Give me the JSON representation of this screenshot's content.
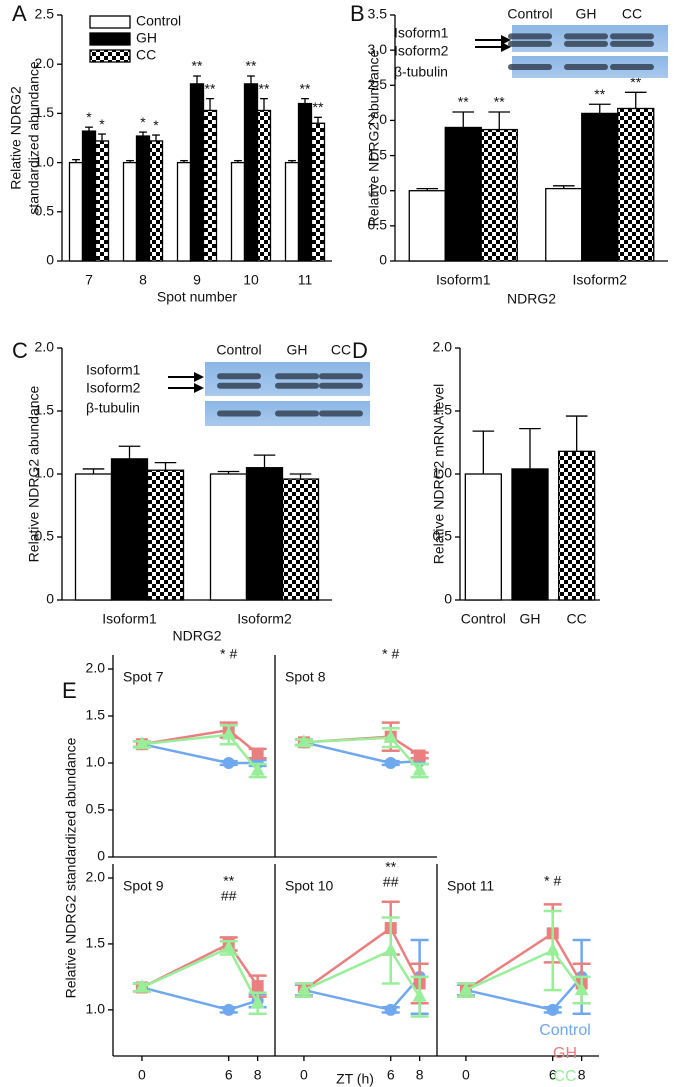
{
  "chart_data": [
    {
      "panel": "A",
      "type": "bar",
      "ylabel": [
        "Relative NDRG2",
        "standardized abundance"
      ],
      "xlabel": "Spot number",
      "categories": [
        "7",
        "8",
        "9",
        "10",
        "11"
      ],
      "ylim": [
        0,
        2.5
      ],
      "yticks": [
        0,
        0.5,
        {
          "value": 1,
          "label": "1.0"
        },
        1.5,
        {
          "value": 2,
          "label": "2.0"
        },
        2.5
      ],
      "legend": "upper left",
      "series": [
        {
          "name": "Control",
          "fill": "#ffffff",
          "values": [
            1,
            1,
            1,
            1,
            1
          ],
          "errors": [
            0.03,
            0.02,
            0.02,
            0.02,
            0.02
          ]
        },
        {
          "name": "GH",
          "fill": "#000000",
          "values": [
            1.32,
            1.27,
            1.8,
            1.8,
            1.6
          ],
          "errors": [
            0.04,
            0.04,
            0.08,
            0.08,
            0.05
          ],
          "markers": [
            "*",
            "*",
            "**",
            "**",
            "**"
          ]
        },
        {
          "name": "CC",
          "fill": "checker",
          "values": [
            1.22,
            1.22,
            1.53,
            1.53,
            1.4
          ],
          "errors": [
            0.07,
            0.06,
            0.12,
            0.12,
            0.06
          ],
          "markers": [
            "*",
            "*",
            "**",
            "**",
            "**"
          ]
        }
      ]
    },
    {
      "panel": "B",
      "type": "bar",
      "ylabel": "Relative NDRG2 abundance",
      "xlabel": "NDRG2",
      "categories": [
        "Isoform1",
        "Isoform2"
      ],
      "ylim": [
        0,
        3.5
      ],
      "yticks": [
        0,
        0.5,
        {
          "value": 1,
          "label": "1.0"
        },
        1.5,
        {
          "value": 2,
          "label": "2.0"
        },
        2.5,
        {
          "value": 3,
          "label": "3.0"
        },
        3.5
      ],
      "inset": {
        "lanes": [
          "Control",
          "GH",
          "CC"
        ],
        "bands": [
          "Isoform1",
          "Isoform2",
          "β-tubulin"
        ]
      },
      "series": [
        {
          "fill": "#ffffff",
          "values": [
            1,
            1.03
          ],
          "errors": [
            0.03,
            0.04
          ]
        },
        {
          "fill": "#000000",
          "values": [
            1.9,
            2.1
          ],
          "errors": [
            0.22,
            0.13
          ],
          "markers": [
            "**",
            "**"
          ]
        },
        {
          "fill": "checker",
          "values": [
            1.87,
            2.17
          ],
          "errors": [
            0.25,
            0.23
          ],
          "markers": [
            "**",
            "**"
          ]
        }
      ]
    },
    {
      "panel": "C",
      "type": "bar",
      "ylabel": "Relative NDRG2 abundance",
      "xlabel": "NDRG2",
      "categories": [
        "Isoform1",
        "Isoform2"
      ],
      "ylim": [
        0,
        2
      ],
      "yticks": [
        0,
        0.5,
        {
          "value": 1,
          "label": "1.0"
        },
        1.5,
        {
          "value": 2,
          "label": "2.0"
        }
      ],
      "inset": {
        "lanes": [
          "Control",
          "GH",
          "CC"
        ],
        "bands": [
          "Isoform1",
          "Isoform2",
          "β-tubulin"
        ]
      },
      "series": [
        {
          "fill": "#ffffff",
          "values": [
            1,
            1
          ],
          "errors": [
            0.04,
            0.02
          ]
        },
        {
          "fill": "#000000",
          "values": [
            1.12,
            1.05
          ],
          "errors": [
            0.1,
            0.1
          ]
        },
        {
          "fill": "checker",
          "values": [
            1.03,
            0.96
          ],
          "errors": [
            0.06,
            0.04
          ]
        }
      ]
    },
    {
      "panel": "D",
      "type": "bar",
      "ylabel": "Relative NDRG2 mRNA level",
      "categories": [
        "Control",
        "GH",
        "CC"
      ],
      "ylim": [
        0,
        2
      ],
      "yticks": [
        0,
        0.5,
        {
          "value": 1,
          "label": "1.0"
        },
        1.5,
        {
          "value": 2,
          "label": "2.0"
        }
      ],
      "values": [
        1,
        1.04,
        1.18
      ],
      "errors": [
        0.34,
        0.32,
        0.28
      ],
      "fills": [
        "#ffffff",
        "#000000",
        "checker"
      ]
    },
    {
      "panel": "E",
      "type": "small-multiples-line",
      "ylabel": "Relative NDRG2 standardized abundance",
      "xlabel": "ZT (h)",
      "legend": "lower right",
      "series": [
        {
          "name": "Control",
          "color": "#6fa8ef",
          "marker": "circle"
        },
        {
          "name": "GH",
          "color": "#ea7f7f",
          "marker": "square"
        },
        {
          "name": "CC",
          "color": "#99ee99",
          "marker": "triangle"
        }
      ],
      "panels": [
        {
          "title": "Spot 7",
          "x": [
            0,
            6,
            8
          ],
          "xlim": [
            -2,
            9.2
          ],
          "ylim": [
            0,
            2
          ],
          "yticks": [
            0,
            0.5,
            {
              "value": 1,
              "label": "1.0"
            },
            1.5,
            {
              "value": 2,
              "label": "2.0"
            }
          ],
          "annotations": [
            "* #"
          ],
          "series": [
            {
              "values": [
                1.2,
                1,
                1
              ],
              "errors": [
                0.03,
                0.02,
                0.03
              ]
            },
            {
              "values": [
                1.2,
                1.35,
                1.1
              ],
              "errors": [
                0.03,
                0.08,
                0.05
              ]
            },
            {
              "values": [
                1.2,
                1.3,
                0.92
              ],
              "errors": [
                0.03,
                0.1,
                0.07
              ]
            }
          ]
        },
        {
          "title": "Spot 8",
          "x": [
            0,
            6,
            8
          ],
          "xlim": [
            -2,
            9.2
          ],
          "ylim": [
            0,
            2
          ],
          "annotations": [
            "* #"
          ],
          "series": [
            {
              "values": [
                1.22,
                1,
                1.02
              ],
              "errors": [
                0.03,
                0.02,
                0.03
              ]
            },
            {
              "values": [
                1.22,
                1.28,
                1.08
              ],
              "errors": [
                0.03,
                0.15,
                0.03
              ]
            },
            {
              "values": [
                1.22,
                1.27,
                0.92
              ],
              "errors": [
                0.03,
                0.1,
                0.07
              ]
            }
          ]
        },
        {
          "title": "Spot 9",
          "x": [
            0,
            6,
            8
          ],
          "xlim": [
            -2,
            9.2
          ],
          "ylim": [
            0.65,
            2
          ],
          "yticks": [
            {
              "value": 1,
              "label": "1.0"
            },
            1.5,
            {
              "value": 2,
              "label": "2.0"
            }
          ],
          "xticks": [
            0,
            6,
            8
          ],
          "annotations": [
            "**",
            "##"
          ],
          "series": [
            {
              "values": [
                1.17,
                1,
                1.07
              ],
              "errors": [
                0.03,
                0.02,
                0.05
              ]
            },
            {
              "values": [
                1.17,
                1.5,
                1.18
              ],
              "errors": [
                0.03,
                0.05,
                0.08
              ]
            },
            {
              "values": [
                1.17,
                1.47,
                1.05
              ],
              "errors": [
                0.03,
                0.05,
                0.08
              ]
            }
          ]
        },
        {
          "title": "Spot 10",
          "x": [
            0,
            6,
            8
          ],
          "xlim": [
            -2,
            9.2
          ],
          "ylim": [
            0.65,
            2
          ],
          "xticks": [
            0,
            6,
            8
          ],
          "annotations": [
            "**",
            "##"
          ],
          "series": [
            {
              "values": [
                1.15,
                1,
                1.25
              ],
              "errors": [
                0.04,
                0.02,
                0.28
              ]
            },
            {
              "values": [
                1.15,
                1.62,
                1.2
              ],
              "errors": [
                0.05,
                0.2,
                0.15
              ]
            },
            {
              "values": [
                1.15,
                1.45,
                1.1
              ],
              "errors": [
                0.05,
                0.25,
                0.15
              ]
            }
          ]
        },
        {
          "title": "Spot 11",
          "x": [
            0,
            6,
            8
          ],
          "xlim": [
            -2,
            9.2
          ],
          "ylim": [
            0.65,
            2
          ],
          "xticks": [
            0,
            6,
            8
          ],
          "annotations": [
            "* #"
          ],
          "series": [
            {
              "values": [
                1.15,
                1,
                1.25
              ],
              "errors": [
                0.04,
                0.02,
                0.28
              ]
            },
            {
              "values": [
                1.15,
                1.58,
                1.2
              ],
              "errors": [
                0.05,
                0.22,
                0.15
              ]
            },
            {
              "values": [
                1.15,
                1.45,
                1.15
              ],
              "errors": [
                0.05,
                0.3,
                0.1
              ]
            }
          ]
        }
      ]
    }
  ]
}
